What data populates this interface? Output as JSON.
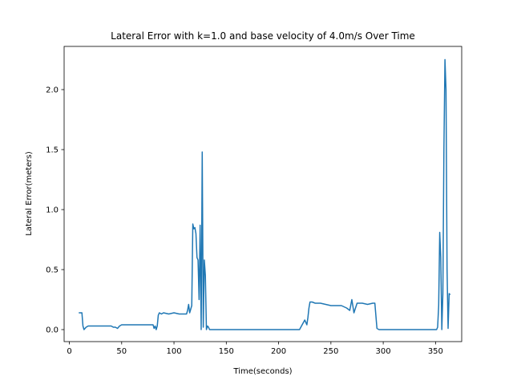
{
  "chart_data": {
    "type": "line",
    "title": "Lateral Error with k=1.0 and base velocity of 4.0m/s Over Time",
    "xlabel": "Time(seconds)",
    "ylabel": "Lateral Error(meters)",
    "xlim": [
      -5,
      375
    ],
    "ylim": [
      -0.1,
      2.36
    ],
    "grid": false,
    "line_color": "#1f77b4",
    "x_ticks": [
      {
        "value": 0,
        "label": "0"
      },
      {
        "value": 50,
        "label": "50"
      },
      {
        "value": 100,
        "label": "100"
      },
      {
        "value": 150,
        "label": "150"
      },
      {
        "value": 200,
        "label": "200"
      },
      {
        "value": 250,
        "label": "250"
      },
      {
        "value": 300,
        "label": "300"
      },
      {
        "value": 350,
        "label": "350"
      }
    ],
    "y_ticks": [
      {
        "value": 0.0,
        "label": "0.0"
      },
      {
        "value": 0.5,
        "label": "0.5"
      },
      {
        "value": 1.0,
        "label": "1.0"
      },
      {
        "value": 1.5,
        "label": "1.5"
      },
      {
        "value": 2.0,
        "label": "2.0"
      }
    ],
    "series": [
      {
        "name": "Lateral Error",
        "x": [
          9,
          10,
          12,
          13,
          14,
          16,
          18,
          20,
          25,
          30,
          35,
          40,
          42,
          44,
          46,
          48,
          50,
          55,
          60,
          65,
          70,
          75,
          80,
          81,
          82,
          83,
          84,
          85,
          86,
          88,
          90,
          95,
          100,
          105,
          110,
          112,
          113,
          114,
          115,
          117,
          118,
          119,
          120,
          121,
          122,
          123,
          124,
          125,
          126,
          127,
          128,
          129,
          130,
          131,
          132,
          133,
          134,
          135,
          136,
          140,
          150,
          160,
          170,
          180,
          190,
          200,
          210,
          220,
          225,
          227,
          228,
          229,
          230,
          232,
          235,
          240,
          245,
          250,
          255,
          260,
          265,
          268,
          270,
          272,
          275,
          280,
          285,
          290,
          292,
          294,
          296,
          300,
          310,
          320,
          330,
          340,
          350,
          351,
          352,
          353,
          354,
          355,
          356,
          357,
          358,
          359,
          360,
          361,
          362,
          363,
          364
        ],
        "y": [
          0.14,
          0.14,
          0.14,
          0.03,
          0.0,
          0.02,
          0.03,
          0.03,
          0.03,
          0.03,
          0.03,
          0.03,
          0.02,
          0.02,
          0.01,
          0.03,
          0.04,
          0.04,
          0.04,
          0.04,
          0.04,
          0.04,
          0.04,
          0.01,
          0.03,
          0.0,
          0.03,
          0.12,
          0.14,
          0.13,
          0.14,
          0.13,
          0.14,
          0.13,
          0.13,
          0.13,
          0.16,
          0.21,
          0.14,
          0.2,
          0.88,
          0.84,
          0.85,
          0.8,
          0.6,
          0.58,
          0.25,
          0.87,
          0.0,
          1.48,
          0.02,
          0.58,
          0.45,
          0.0,
          0.03,
          0.02,
          0.0,
          0.0,
          0.0,
          0.0,
          0.0,
          0.0,
          0.0,
          0.0,
          0.0,
          0.0,
          0.0,
          0.0,
          0.08,
          0.04,
          0.1,
          0.18,
          0.23,
          0.23,
          0.22,
          0.22,
          0.21,
          0.2,
          0.2,
          0.2,
          0.18,
          0.16,
          0.25,
          0.14,
          0.22,
          0.22,
          0.21,
          0.22,
          0.22,
          0.01,
          0.0,
          0.0,
          0.0,
          0.0,
          0.0,
          0.0,
          0.0,
          0.0,
          0.02,
          0.2,
          0.81,
          0.6,
          0.0,
          0.3,
          1.5,
          2.25,
          2.0,
          0.5,
          0.01,
          0.3,
          0.29
        ]
      }
    ]
  }
}
